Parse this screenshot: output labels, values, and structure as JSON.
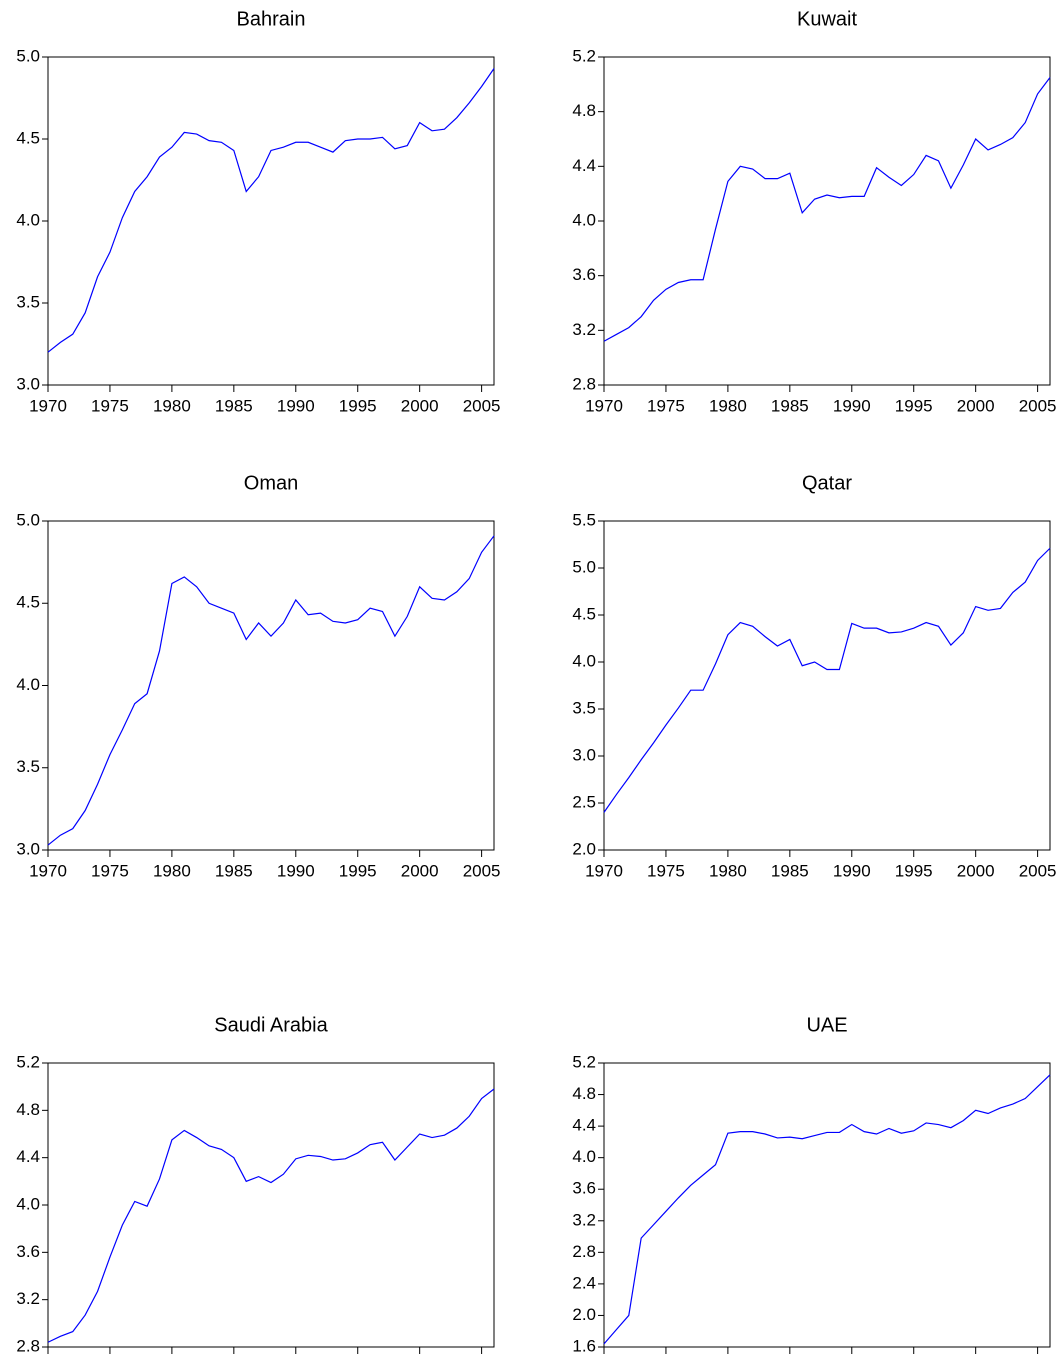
{
  "chart_data": [
    {
      "type": "line",
      "title": "Bahrain",
      "color": "#0000ff",
      "x": [
        1970,
        1971,
        1972,
        1973,
        1974,
        1975,
        1976,
        1977,
        1978,
        1979,
        1980,
        1981,
        1982,
        1983,
        1984,
        1985,
        1986,
        1987,
        1988,
        1989,
        1990,
        1991,
        1992,
        1993,
        1994,
        1995,
        1996,
        1997,
        1998,
        1999,
        2000,
        2001,
        2002,
        2003,
        2004,
        2005,
        2006
      ],
      "values": [
        3.2,
        3.26,
        3.31,
        3.44,
        3.66,
        3.81,
        4.02,
        4.18,
        4.27,
        4.39,
        4.45,
        4.54,
        4.53,
        4.49,
        4.48,
        4.43,
        4.18,
        4.27,
        4.43,
        4.45,
        4.48,
        4.48,
        4.45,
        4.42,
        4.49,
        4.5,
        4.5,
        4.51,
        4.44,
        4.46,
        4.6,
        4.55,
        4.56,
        4.63,
        4.72,
        4.82,
        4.93
      ],
      "xlim": [
        1970,
        2006
      ],
      "xticks": [
        1970,
        1975,
        1980,
        1985,
        1990,
        1995,
        2000,
        2005
      ],
      "ylim": [
        3.0,
        5.0
      ],
      "yticks": [
        {
          "value": 3,
          "label": "3.0"
        },
        3.5,
        {
          "value": 4,
          "label": "4.0"
        },
        4.5,
        {
          "value": 5,
          "label": "5.0"
        }
      ]
    },
    {
      "type": "line",
      "title": "Kuwait",
      "color": "#0000ff",
      "x": [
        1970,
        1971,
        1972,
        1973,
        1974,
        1975,
        1976,
        1977,
        1978,
        1979,
        1980,
        1981,
        1982,
        1983,
        1984,
        1985,
        1986,
        1987,
        1988,
        1989,
        1990,
        1991,
        1992,
        1993,
        1994,
        1995,
        1996,
        1997,
        1998,
        1999,
        2000,
        2001,
        2002,
        2003,
        2004,
        2005,
        2006
      ],
      "values": [
        3.12,
        3.17,
        3.22,
        3.3,
        3.42,
        3.5,
        3.55,
        3.57,
        3.57,
        3.94,
        4.29,
        4.4,
        4.38,
        4.31,
        4.31,
        4.35,
        4.06,
        4.16,
        4.19,
        4.17,
        4.18,
        4.18,
        4.39,
        4.32,
        4.26,
        4.34,
        4.48,
        4.44,
        4.24,
        4.41,
        4.6,
        4.52,
        4.56,
        4.61,
        4.72,
        4.93,
        5.05
      ],
      "xlim": [
        1970,
        2006
      ],
      "xticks": [
        1970,
        1975,
        1980,
        1985,
        1990,
        1995,
        2000,
        2005
      ],
      "ylim": [
        2.8,
        5.2
      ],
      "yticks": [
        2.8,
        3.2,
        3.6,
        {
          "value": 4,
          "label": "4.0"
        },
        4.4,
        4.8,
        5.2
      ]
    },
    {
      "type": "line",
      "title": "Oman",
      "color": "#0000ff",
      "x": [
        1970,
        1971,
        1972,
        1973,
        1974,
        1975,
        1976,
        1977,
        1978,
        1979,
        1980,
        1981,
        1982,
        1983,
        1984,
        1985,
        1986,
        1987,
        1988,
        1989,
        1990,
        1991,
        1992,
        1993,
        1994,
        1995,
        1996,
        1997,
        1998,
        1999,
        2000,
        2001,
        2002,
        2003,
        2004,
        2005,
        2006
      ],
      "values": [
        3.03,
        3.09,
        3.13,
        3.24,
        3.4,
        3.58,
        3.73,
        3.89,
        3.95,
        4.21,
        4.62,
        4.66,
        4.6,
        4.5,
        4.47,
        4.44,
        4.28,
        4.38,
        4.3,
        4.38,
        4.52,
        4.43,
        4.44,
        4.39,
        4.38,
        4.4,
        4.47,
        4.45,
        4.3,
        4.42,
        4.6,
        4.53,
        4.52,
        4.57,
        4.65,
        4.81,
        4.91
      ],
      "xlim": [
        1970,
        2006
      ],
      "xticks": [
        1970,
        1975,
        1980,
        1985,
        1990,
        1995,
        2000,
        2005
      ],
      "ylim": [
        3.0,
        5.0
      ],
      "yticks": [
        {
          "value": 3,
          "label": "3.0"
        },
        3.5,
        {
          "value": 4,
          "label": "4.0"
        },
        4.5,
        {
          "value": 5,
          "label": "5.0"
        }
      ]
    },
    {
      "type": "line",
      "title": "Qatar",
      "color": "#0000ff",
      "x": [
        1970,
        1971,
        1972,
        1973,
        1974,
        1975,
        1976,
        1977,
        1978,
        1979,
        1980,
        1981,
        1982,
        1983,
        1984,
        1985,
        1986,
        1987,
        1988,
        1989,
        1990,
        1991,
        1992,
        1993,
        1994,
        1995,
        1996,
        1997,
        1998,
        1999,
        2000,
        2001,
        2002,
        2003,
        2004,
        2005,
        2006
      ],
      "values": [
        2.4,
        2.59,
        2.77,
        2.96,
        3.14,
        3.33,
        3.51,
        3.7,
        3.7,
        3.98,
        4.29,
        4.42,
        4.38,
        4.27,
        4.17,
        4.24,
        3.96,
        4.0,
        3.92,
        3.92,
        4.41,
        4.36,
        4.36,
        4.31,
        4.32,
        4.36,
        4.42,
        4.38,
        4.18,
        4.31,
        4.59,
        4.55,
        4.57,
        4.74,
        4.85,
        5.08,
        5.21
      ],
      "xlim": [
        1970,
        2006
      ],
      "xticks": [
        1970,
        1975,
        1980,
        1985,
        1990,
        1995,
        2000,
        2005
      ],
      "ylim": [
        2.0,
        5.5
      ],
      "yticks": [
        {
          "value": 2,
          "label": "2.0"
        },
        2.5,
        {
          "value": 3,
          "label": "3.0"
        },
        3.5,
        {
          "value": 4,
          "label": "4.0"
        },
        4.5,
        {
          "value": 5,
          "label": "5.0"
        },
        5.5
      ]
    },
    {
      "type": "line",
      "title": "Saudi Arabia",
      "color": "#0000ff",
      "x": [
        1970,
        1971,
        1972,
        1973,
        1974,
        1975,
        1976,
        1977,
        1978,
        1979,
        1980,
        1981,
        1982,
        1983,
        1984,
        1985,
        1986,
        1987,
        1988,
        1989,
        1990,
        1991,
        1992,
        1993,
        1994,
        1995,
        1996,
        1997,
        1998,
        1999,
        2000,
        2001,
        2002,
        2003,
        2004,
        2005,
        2006
      ],
      "values": [
        2.84,
        2.89,
        2.93,
        3.07,
        3.27,
        3.56,
        3.83,
        4.03,
        3.99,
        4.22,
        4.55,
        4.63,
        4.57,
        4.5,
        4.47,
        4.4,
        4.2,
        4.24,
        4.19,
        4.26,
        4.39,
        4.42,
        4.41,
        4.38,
        4.39,
        4.44,
        4.51,
        4.53,
        4.38,
        4.49,
        4.6,
        4.57,
        4.59,
        4.65,
        4.75,
        4.9,
        4.98
      ],
      "xlim": [
        1970,
        2006
      ],
      "xticks": [
        1970,
        1975,
        1980,
        1985,
        1990,
        1995,
        2000,
        2005
      ],
      "ylim": [
        2.8,
        5.2
      ],
      "yticks": [
        2.8,
        3.2,
        3.6,
        {
          "value": 4,
          "label": "4.0"
        },
        4.4,
        4.8,
        5.2
      ]
    },
    {
      "type": "line",
      "title": "UAE",
      "color": "#0000ff",
      "x": [
        1970,
        1971,
        1972,
        1973,
        1974,
        1975,
        1976,
        1977,
        1978,
        1979,
        1980,
        1981,
        1982,
        1983,
        1984,
        1985,
        1986,
        1987,
        1988,
        1989,
        1990,
        1991,
        1992,
        1993,
        1994,
        1995,
        1996,
        1997,
        1998,
        1999,
        2000,
        2001,
        2002,
        2003,
        2004,
        2005,
        2006
      ],
      "values": [
        1.64,
        1.82,
        2.0,
        2.98,
        3.15,
        3.32,
        3.49,
        3.65,
        3.78,
        3.91,
        4.31,
        4.33,
        4.33,
        4.3,
        4.25,
        4.26,
        4.24,
        4.28,
        4.32,
        4.32,
        4.42,
        4.33,
        4.3,
        4.37,
        4.31,
        4.34,
        4.44,
        4.42,
        4.38,
        4.47,
        4.6,
        4.56,
        4.63,
        4.68,
        4.75,
        4.9,
        5.05
      ],
      "xlim": [
        1970,
        2006
      ],
      "xticks": [
        1970,
        1975,
        1980,
        1985,
        1990,
        1995,
        2000,
        2005
      ],
      "ylim": [
        1.6,
        5.2
      ],
      "yticks": [
        1.6,
        {
          "value": 2,
          "label": "2.0"
        },
        2.4,
        2.8,
        3.2,
        3.6,
        {
          "value": 4,
          "label": "4.0"
        },
        4.4,
        4.8,
        5.2
      ]
    }
  ]
}
